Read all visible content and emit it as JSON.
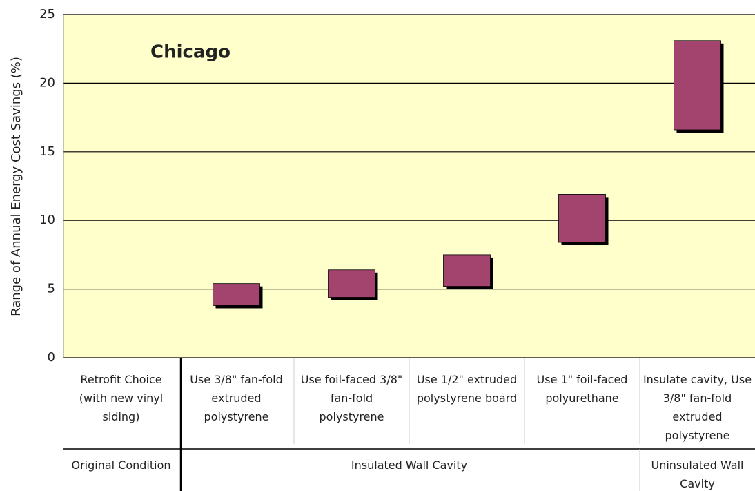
{
  "chart_data": {
    "type": "range_bar",
    "title": "Chicago",
    "y_label": "Range of Annual Energy Cost Savings (%)",
    "categories": [
      "Retrofit Choice (with new vinyl siding)",
      "Use 3/8\" fan-fold extruded polystyrene",
      "Use foil-faced 3/8\" fan-fold polystyrene",
      "Use 1/2\" extruded polystyrene board",
      "Use 1\" foil-faced polyurethane",
      "Insulate cavity, Use 3/8\" fan-fold extruded polystyrene"
    ],
    "lows": [
      null,
      3.8,
      4.4,
      5.2,
      8.4,
      16.6
    ],
    "highs": [
      null,
      5.4,
      6.4,
      7.5,
      11.9,
      23.1
    ],
    "groups": [
      {
        "label": "Original Condition",
        "span": 1
      },
      {
        "label": "Insulated Wall Cavity",
        "span": 4
      },
      {
        "label": "Uninsulated Wall Cavity",
        "span": 1
      }
    ],
    "color": "#a3446f",
    "ylim": [
      0,
      25
    ],
    "yticks": [
      0,
      5,
      10,
      15,
      20,
      25
    ],
    "grid": true
  }
}
